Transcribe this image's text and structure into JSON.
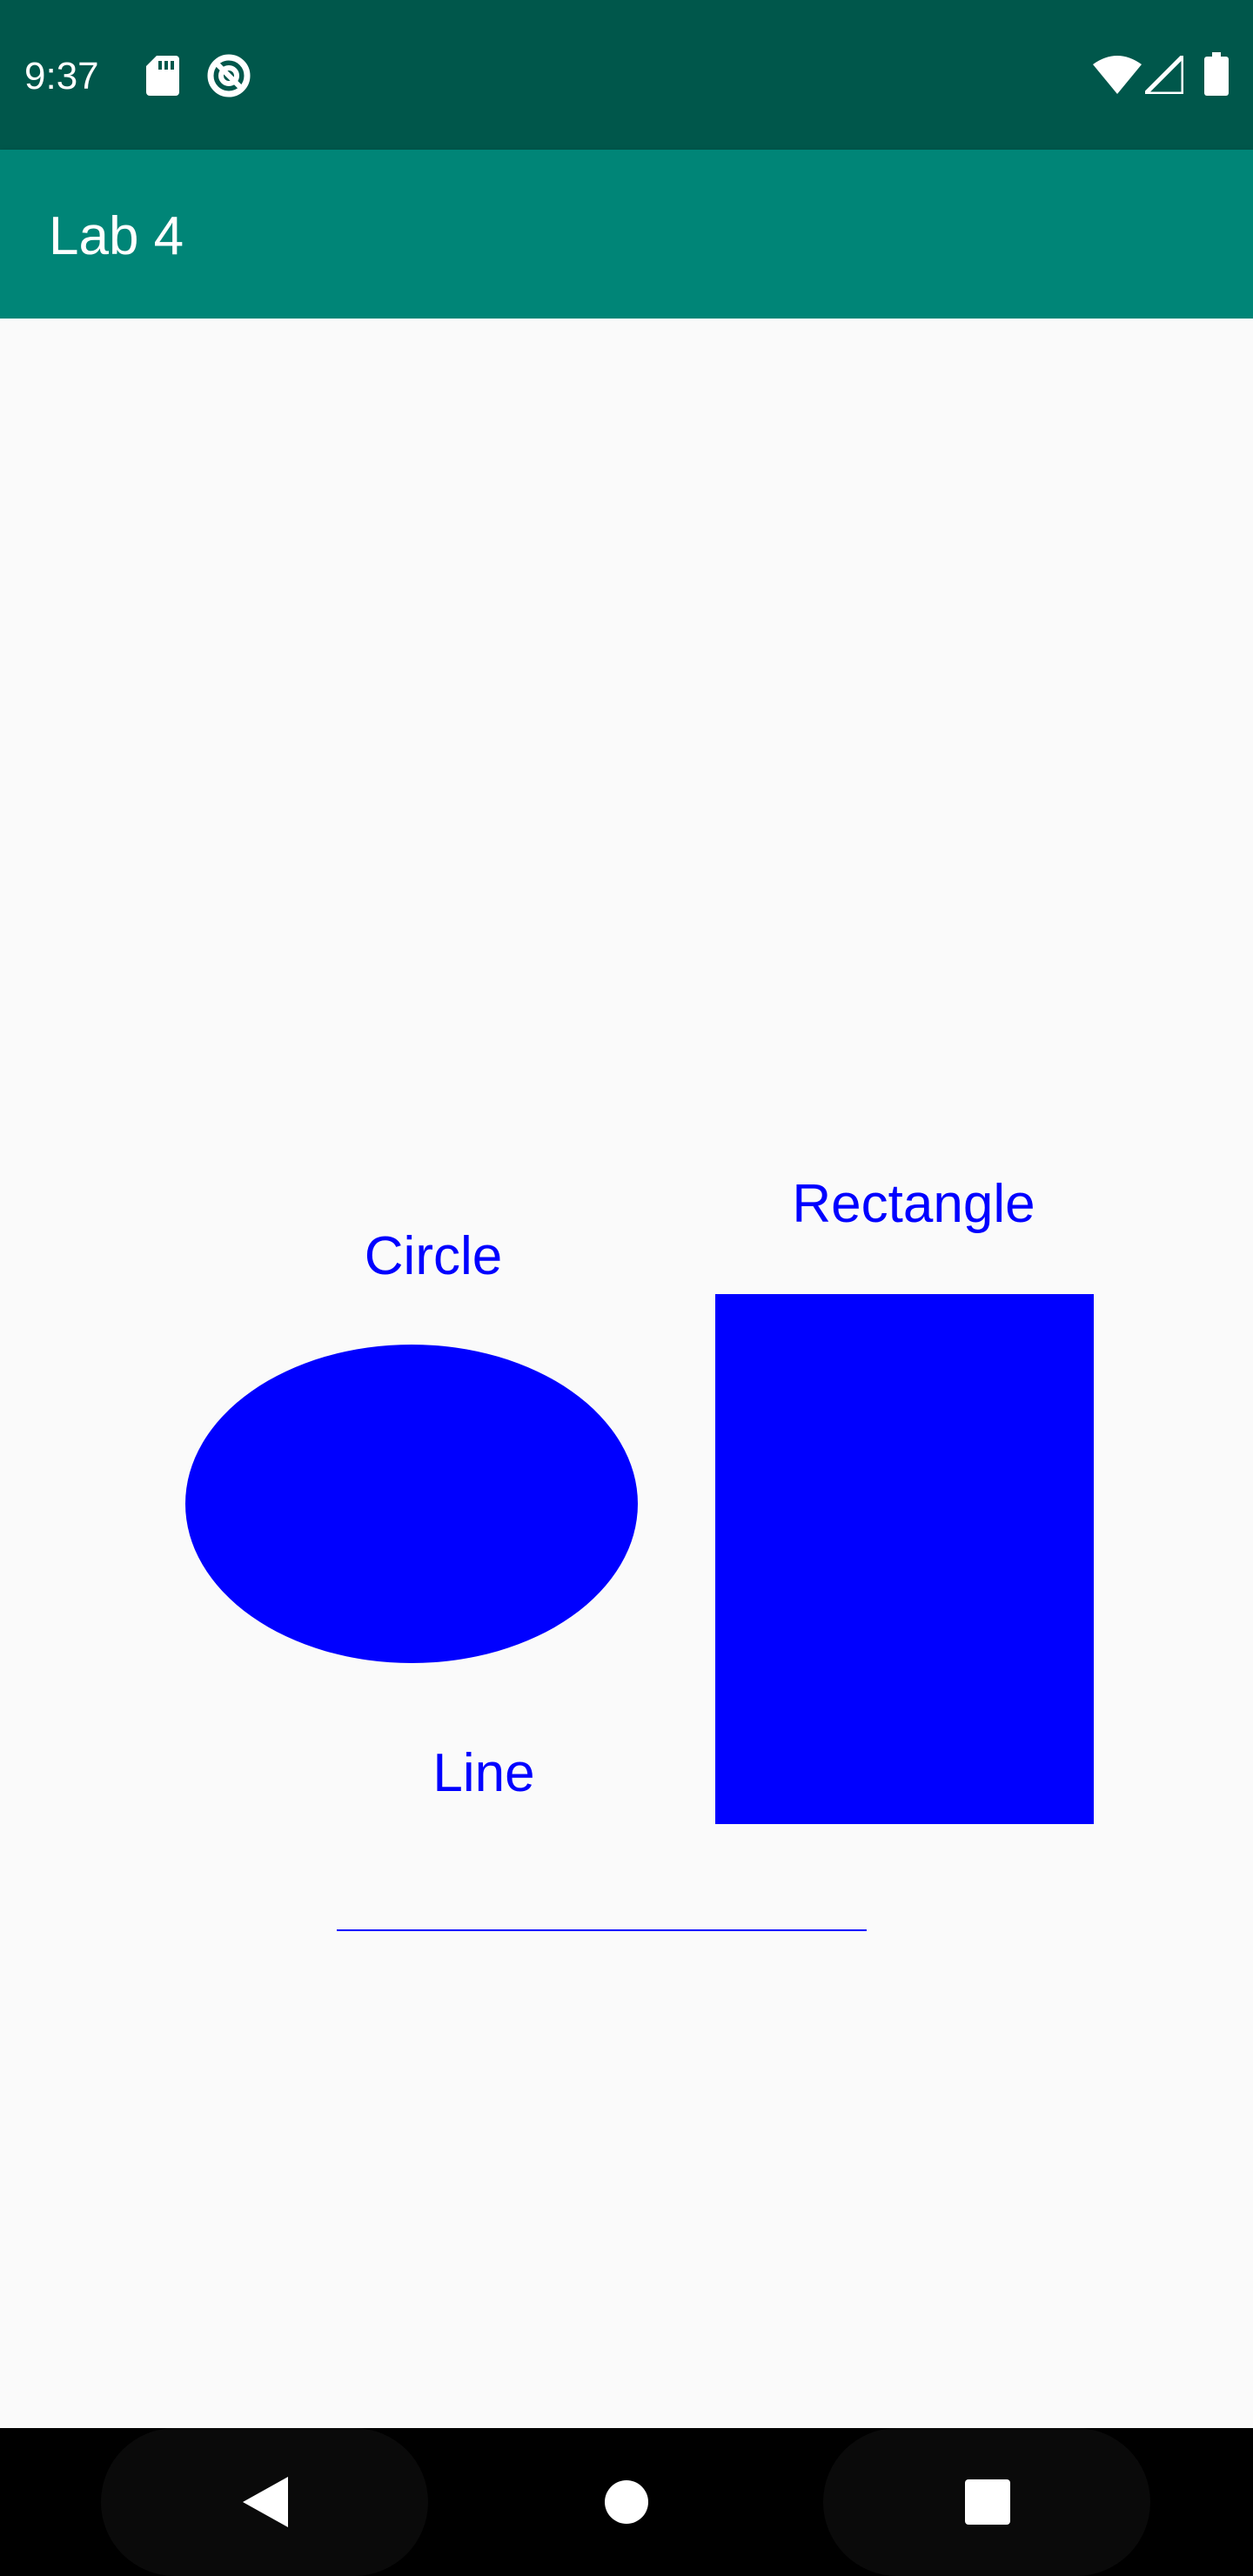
{
  "status_bar": {
    "time": "9:37",
    "background": "#00574b",
    "icons": [
      "sd-card-icon",
      "data-saver-icon",
      "wifi-icon",
      "cell-signal-icon",
      "battery-icon"
    ]
  },
  "app_bar": {
    "title": "Lab 4",
    "background": "#008577"
  },
  "canvas": {
    "shape_color": "#0000ff",
    "shapes": {
      "circle": {
        "label": "Circle"
      },
      "rectangle": {
        "label": "Rectangle"
      },
      "line": {
        "label": "Line"
      }
    }
  },
  "nav_bar": {
    "buttons": [
      "back-icon",
      "home-icon",
      "recents-icon"
    ]
  }
}
